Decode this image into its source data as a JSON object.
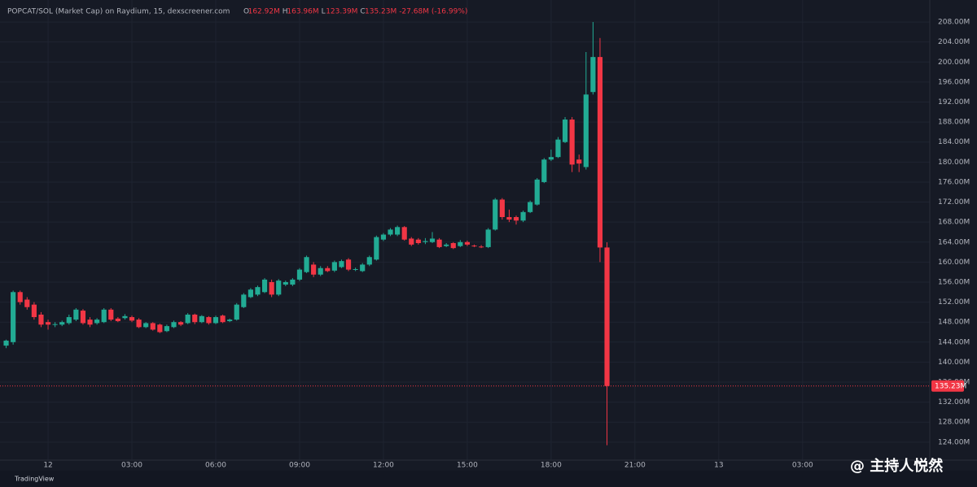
{
  "chart_data": {
    "type": "candlestick",
    "title": "POPCAT/SOL (Market Cap) on Raydium, 15, dexscreener.com",
    "ohlc_header": [
      "O",
      "162.92M",
      "H",
      "163.96M",
      "L",
      "123.39M",
      "C",
      "135.23M"
    ],
    "change": "-27.68M (-16.99%)",
    "up_color": "#22ab94",
    "down_color": "#f23645",
    "grid": true,
    "x": [
      -1.5,
      -1.25,
      -1,
      -0.75,
      -0.5,
      -0.25,
      0,
      0.25,
      0.5,
      0.75,
      1,
      1.25,
      1.5,
      1.75,
      2,
      2.25,
      2.5,
      2.75,
      3,
      3.25,
      3.5,
      3.75,
      4,
      4.25,
      4.5,
      4.75,
      5,
      5.25,
      5.5,
      5.75,
      6,
      6.25,
      6.5,
      6.75,
      7,
      7.25,
      7.5,
      7.75,
      8,
      8.25,
      8.5,
      8.75,
      9,
      9.25,
      9.5,
      9.75,
      10,
      10.25,
      10.5,
      10.75,
      11,
      11.25,
      11.5,
      11.75,
      12,
      12.25,
      12.5,
      12.75,
      13,
      13.25,
      13.5,
      13.75,
      14,
      14.25,
      14.5,
      14.75,
      15,
      15.25,
      15.5,
      15.75,
      16,
      16.25,
      16.5,
      16.75,
      17,
      17.25,
      17.5,
      17.75,
      18,
      18.25,
      18.5,
      18.75,
      19,
      19.25,
      19.5,
      19.75,
      20
    ],
    "open": [
      143.3,
      144,
      154,
      152.5,
      151.5,
      149.5,
      148,
      147.5,
      147.5,
      147.8,
      148.5,
      150.3,
      148.5,
      147.8,
      148,
      150.5,
      148.7,
      148.8,
      149,
      148.5,
      147,
      147.8,
      147.5,
      146.2,
      147,
      148,
      147.8,
      149.5,
      148,
      149,
      147.8,
      149.3,
      148.2,
      148.5,
      151,
      153,
      153.5,
      154,
      156,
      153.5,
      155.5,
      155.5,
      156.5,
      158,
      159.5,
      157.5,
      158.8,
      158.3,
      159,
      160.5,
      158.5,
      158.2,
      159.5,
      160.5,
      164.5,
      165.5,
      165.5,
      167,
      164.7,
      164.5,
      164,
      164,
      164.5,
      163.2,
      163.8,
      163.2,
      164,
      163.3,
      163.1,
      163,
      166.5,
      172.5,
      169,
      169,
      168.3,
      170,
      171.5,
      176,
      180.5,
      181,
      184,
      188.5,
      180.5,
      179,
      194,
      201,
      162.92
    ],
    "high": [
      144.5,
      154.3,
      154.3,
      153,
      152,
      150,
      148.5,
      148,
      148.3,
      149.5,
      150.8,
      150.6,
      149,
      148.8,
      150.8,
      150.8,
      149,
      149.6,
      149.3,
      148.8,
      148,
      148,
      147.7,
      147.5,
      148.3,
      148.2,
      149.8,
      149.7,
      149.4,
      149.2,
      149.3,
      149.5,
      148.7,
      151.8,
      153.8,
      154.8,
      155.3,
      156.8,
      156.5,
      156.6,
      156.3,
      156.8,
      158.8,
      161.3,
      160,
      159.2,
      159.2,
      160.3,
      160.5,
      160.8,
      158.9,
      159.8,
      161.3,
      165.3,
      165.8,
      166.8,
      167.3,
      167.2,
      165,
      164.8,
      164.8,
      166,
      164.8,
      163.8,
      164,
      164.4,
      164.3,
      163.5,
      163.4,
      166.8,
      172.8,
      172.8,
      170.5,
      169.3,
      170.3,
      172.3,
      176.8,
      180.8,
      182.5,
      185,
      189,
      189,
      181.5,
      202,
      208,
      204.8,
      163.96
    ],
    "low": [
      142.8,
      143.5,
      151.5,
      150.5,
      148.5,
      147,
      146.5,
      147,
      147.2,
      147.5,
      148.2,
      147.5,
      147,
      147.5,
      147.8,
      148.2,
      148,
      148.5,
      148,
      146.8,
      146.8,
      146.3,
      145.8,
      146,
      146.8,
      147.2,
      147.6,
      147.6,
      147.8,
      147.5,
      147.6,
      147.8,
      148,
      148.3,
      150.8,
      152.8,
      153.2,
      153.8,
      153,
      153.2,
      155.2,
      155.2,
      156.2,
      157.8,
      157,
      157.2,
      158,
      158,
      158.8,
      158.2,
      158.2,
      158,
      159.2,
      160.3,
      164.2,
      165.2,
      165.2,
      164.3,
      163.2,
      163.5,
      163.6,
      163.8,
      162.8,
      163,
      162.6,
      163,
      163.2,
      163,
      162.8,
      162.8,
      166.3,
      168.5,
      168,
      167.5,
      168,
      169.8,
      171.3,
      175.8,
      180.2,
      180.8,
      183.8,
      178,
      178,
      178.5,
      193.5,
      160,
      123.39
    ],
    "close": [
      144.3,
      154,
      152,
      151,
      149,
      147.5,
      147.5,
      147.6,
      148,
      149,
      150.5,
      147.8,
      147.5,
      148.5,
      150.5,
      148.5,
      148.2,
      149.2,
      148.3,
      147,
      147.8,
      146.5,
      146,
      147.2,
      148,
      147.5,
      149.5,
      148,
      149.2,
      147.8,
      149,
      148,
      148.5,
      151.5,
      153.5,
      154.5,
      155,
      156.5,
      153.5,
      156.3,
      156,
      156.5,
      158.5,
      161,
      157.5,
      158.8,
      158.2,
      160,
      160.2,
      158.5,
      158.6,
      159.5,
      161,
      165,
      165.5,
      166.5,
      167,
      164.5,
      163.5,
      163.8,
      164.2,
      164.7,
      163,
      163.5,
      162.8,
      164,
      163.5,
      163.2,
      163,
      166.5,
      172.5,
      169,
      168.5,
      168.3,
      170,
      172,
      176.5,
      180.5,
      181,
      184.5,
      188.5,
      179.5,
      179.7,
      193.5,
      201,
      162.92,
      135.23
    ],
    "xlim": [
      -1.72,
      31.55
    ],
    "xticks": [
      {
        "value": 0,
        "label": "12"
      },
      {
        "value": 3,
        "label": "03:00"
      },
      {
        "value": 6,
        "label": "06:00"
      },
      {
        "value": 9,
        "label": "09:00"
      },
      {
        "value": 12,
        "label": "12:00"
      },
      {
        "value": 15,
        "label": "15:00"
      },
      {
        "value": 18,
        "label": "18:00"
      },
      {
        "value": 21,
        "label": "21:00"
      },
      {
        "value": 24,
        "label": "13"
      },
      {
        "value": 27,
        "label": "03:00"
      }
    ],
    "ylim": [
      120.4,
      212.4
    ],
    "yticks": [
      {
        "value": 124,
        "label": "124.00M"
      },
      {
        "value": 128,
        "label": "128.00M"
      },
      {
        "value": 132,
        "label": "132.00M"
      },
      {
        "value": 136,
        "label": "136.00M"
      },
      {
        "value": 140,
        "label": "140.00M"
      },
      {
        "value": 144,
        "label": "144.00M"
      },
      {
        "value": 148,
        "label": "148.00M"
      },
      {
        "value": 152,
        "label": "152.00M"
      },
      {
        "value": 156,
        "label": "156.00M"
      },
      {
        "value": 160,
        "label": "160.00M"
      },
      {
        "value": 164,
        "label": "164.00M"
      },
      {
        "value": 168,
        "label": "168.00M"
      },
      {
        "value": 172,
        "label": "172.00M"
      },
      {
        "value": 176,
        "label": "176.00M"
      },
      {
        "value": 180,
        "label": "180.00M"
      },
      {
        "value": 184,
        "label": "184.00M"
      },
      {
        "value": 188,
        "label": "188.00M"
      },
      {
        "value": 192,
        "label": "192.00M"
      },
      {
        "value": 196,
        "label": "196.00M"
      },
      {
        "value": 200,
        "label": "200.00M"
      },
      {
        "value": 204,
        "label": "204.00M"
      },
      {
        "value": 208,
        "label": "208.00M"
      }
    ],
    "last_price": {
      "value": 135.23,
      "label": "135.23M"
    },
    "footer": "TradingView",
    "watermark": "@ 主持人悦然"
  }
}
